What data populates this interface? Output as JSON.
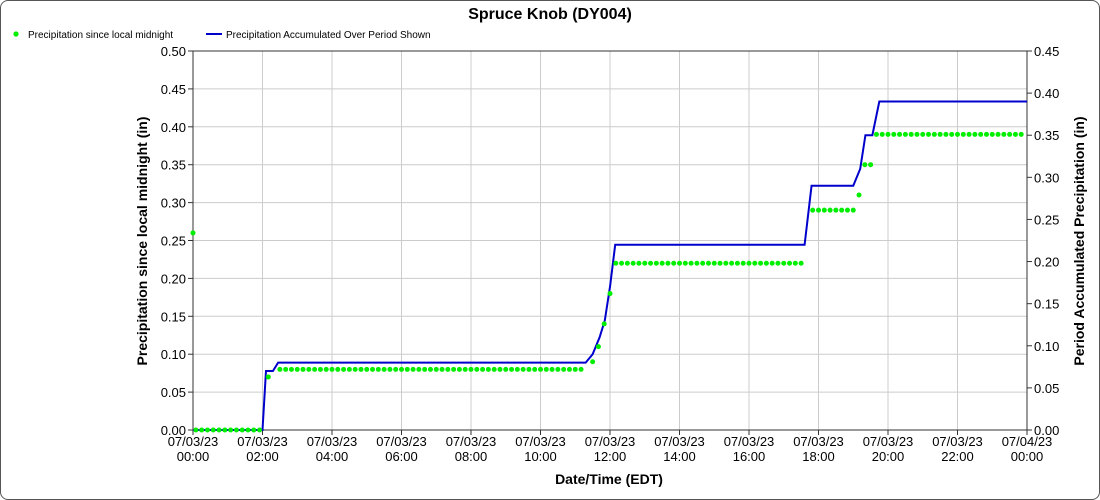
{
  "chart_data": {
    "type": "line",
    "title": "Spruce Knob (DY004)",
    "xlabel": "Date/Time (EDT)",
    "ylabel_left": "Precipitation since local midnight (in)",
    "ylabel_right": "Period Accumulated Precipitation (in)",
    "legend": {
      "placement": "top-left",
      "items": [
        {
          "name": "Precipitation since local midnight",
          "color": "#00ee00",
          "marker": "dot"
        },
        {
          "name": "Precipitation Accumulated Over Period Shown",
          "color": "#0000cc",
          "marker": "line"
        }
      ]
    },
    "x_ticks": [
      {
        "date": "07/03/23",
        "time": "00:00",
        "hour": 0
      },
      {
        "date": "07/03/23",
        "time": "02:00",
        "hour": 2
      },
      {
        "date": "07/03/23",
        "time": "04:00",
        "hour": 4
      },
      {
        "date": "07/03/23",
        "time": "06:00",
        "hour": 6
      },
      {
        "date": "07/03/23",
        "time": "08:00",
        "hour": 8
      },
      {
        "date": "07/03/23",
        "time": "10:00",
        "hour": 10
      },
      {
        "date": "07/03/23",
        "time": "12:00",
        "hour": 12
      },
      {
        "date": "07/03/23",
        "time": "14:00",
        "hour": 14
      },
      {
        "date": "07/03/23",
        "time": "16:00",
        "hour": 16
      },
      {
        "date": "07/03/23",
        "time": "18:00",
        "hour": 18
      },
      {
        "date": "07/03/23",
        "time": "20:00",
        "hour": 20
      },
      {
        "date": "07/03/23",
        "time": "22:00",
        "hour": 22
      },
      {
        "date": "07/04/23",
        "time": "00:00",
        "hour": 24
      }
    ],
    "xlim_hours": [
      0,
      24
    ],
    "ylim_left": [
      0,
      0.5
    ],
    "y_ticks_left": [
      "0.00",
      "0.05",
      "0.10",
      "0.15",
      "0.20",
      "0.25",
      "0.30",
      "0.35",
      "0.40",
      "0.45",
      "0.50"
    ],
    "ylim_right": [
      0,
      0.45
    ],
    "y_ticks_right": [
      "0.00",
      "0.05",
      "0.10",
      "0.15",
      "0.20",
      "0.25",
      "0.30",
      "0.35",
      "0.40",
      "0.45"
    ],
    "grid": true,
    "series": [
      {
        "name": "Precipitation since local midnight",
        "axis": "left",
        "style": "points",
        "color": "#00ee00",
        "segments": [
          {
            "from": 0.0,
            "to": 0.0,
            "step": 1,
            "value": 0.26
          },
          {
            "from": 0.083,
            "to": 2.0,
            "step": 0.16667,
            "value": 0.0
          },
          {
            "from": 2.1667,
            "to": 2.3333,
            "step": 0.16667,
            "value": 0.07
          },
          {
            "from": 2.5,
            "to": 11.3333,
            "step": 0.16667,
            "value": 0.08
          },
          {
            "from": 11.5,
            "to": 11.5,
            "step": 1,
            "value": 0.09
          },
          {
            "from": 11.6667,
            "to": 11.6667,
            "step": 1,
            "value": 0.11
          },
          {
            "from": 11.8333,
            "to": 11.8333,
            "step": 1,
            "value": 0.14
          },
          {
            "from": 12.0,
            "to": 12.0,
            "step": 1,
            "value": 0.18
          },
          {
            "from": 12.1667,
            "to": 17.6667,
            "step": 0.16667,
            "value": 0.22
          },
          {
            "from": 17.8333,
            "to": 19.0,
            "step": 0.16667,
            "value": 0.29
          },
          {
            "from": 19.1667,
            "to": 19.1667,
            "step": 1,
            "value": 0.31
          },
          {
            "from": 19.3333,
            "to": 19.5,
            "step": 0.16667,
            "value": 0.35
          },
          {
            "from": 19.6667,
            "to": 24.0,
            "step": 0.16667,
            "value": 0.39
          }
        ]
      },
      {
        "name": "Precipitation Accumulated Over Period Shown",
        "axis": "right",
        "style": "line",
        "color": "#0000cc",
        "points": [
          [
            0.0,
            0.0
          ],
          [
            2.0,
            0.0
          ],
          [
            2.1,
            0.07
          ],
          [
            2.3,
            0.07
          ],
          [
            2.45,
            0.08
          ],
          [
            11.3,
            0.08
          ],
          [
            11.5,
            0.09
          ],
          [
            11.7,
            0.11
          ],
          [
            11.85,
            0.13
          ],
          [
            12.0,
            0.17
          ],
          [
            12.15,
            0.22
          ],
          [
            17.6,
            0.22
          ],
          [
            17.8,
            0.29
          ],
          [
            19.0,
            0.29
          ],
          [
            19.2,
            0.31
          ],
          [
            19.35,
            0.35
          ],
          [
            19.55,
            0.35
          ],
          [
            19.75,
            0.39
          ],
          [
            24.0,
            0.39
          ]
        ]
      }
    ]
  }
}
